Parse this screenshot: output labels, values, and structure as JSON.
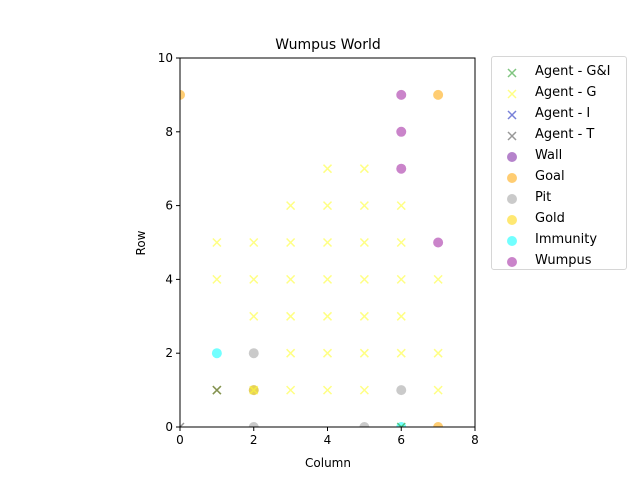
{
  "chart_data": {
    "type": "scatter",
    "title": "Wumpus World",
    "xlabel": "Column",
    "ylabel": "Row",
    "xlim": [
      0,
      8
    ],
    "ylim": [
      0,
      10
    ],
    "xticks": [
      "0",
      "2",
      "4",
      "6",
      "8"
    ],
    "yticks": [
      "0",
      "2",
      "4",
      "6",
      "8",
      "10"
    ],
    "grid": false,
    "legend_placement": "outside-right",
    "series": [
      {
        "name": "Agent - G&I",
        "marker": "x",
        "color": "#2ca02c",
        "points": [
          [
            1,
            1
          ],
          [
            6,
            0
          ]
        ]
      },
      {
        "name": "Agent - G",
        "marker": "x",
        "color": "#ffff33",
        "points": [
          [
            1,
            1
          ],
          [
            1,
            4
          ],
          [
            1,
            5
          ],
          [
            2,
            1
          ],
          [
            2,
            3
          ],
          [
            2,
            4
          ],
          [
            2,
            5
          ],
          [
            3,
            1
          ],
          [
            3,
            2
          ],
          [
            3,
            3
          ],
          [
            3,
            4
          ],
          [
            3,
            5
          ],
          [
            3,
            6
          ],
          [
            4,
            1
          ],
          [
            4,
            2
          ],
          [
            4,
            3
          ],
          [
            4,
            4
          ],
          [
            4,
            5
          ],
          [
            4,
            6
          ],
          [
            4,
            7
          ],
          [
            5,
            1
          ],
          [
            5,
            2
          ],
          [
            5,
            3
          ],
          [
            5,
            4
          ],
          [
            5,
            5
          ],
          [
            5,
            6
          ],
          [
            5,
            7
          ],
          [
            6,
            2
          ],
          [
            6,
            3
          ],
          [
            6,
            4
          ],
          [
            6,
            5
          ],
          [
            6,
            6
          ],
          [
            7,
            1
          ],
          [
            7,
            2
          ],
          [
            7,
            4
          ]
        ]
      },
      {
        "name": "Agent - I",
        "marker": "x",
        "color": "#1f2fbf",
        "points": []
      },
      {
        "name": "Agent - T",
        "marker": "x",
        "color": "#555555",
        "points": [
          [
            0,
            0
          ],
          [
            1,
            1
          ]
        ]
      },
      {
        "name": "Wall",
        "marker": "o",
        "color": "#7a1fa2",
        "points": []
      },
      {
        "name": "Goal",
        "marker": "o",
        "color": "#ffa500",
        "points": [
          [
            0,
            9
          ],
          [
            7,
            9
          ],
          [
            7,
            0
          ]
        ]
      },
      {
        "name": "Pit",
        "marker": "o",
        "color": "#a0a0a0",
        "points": [
          [
            2,
            2
          ],
          [
            2,
            1
          ],
          [
            2,
            0
          ],
          [
            5,
            0
          ],
          [
            6,
            1
          ]
        ]
      },
      {
        "name": "Gold",
        "marker": "o",
        "color": "#ffd700",
        "points": [
          [
            2,
            1
          ]
        ]
      },
      {
        "name": "Immunity",
        "marker": "o",
        "color": "#00ffff",
        "points": [
          [
            1,
            2
          ],
          [
            6,
            0
          ]
        ]
      },
      {
        "name": "Wumpus",
        "marker": "o",
        "color": "#a020a0",
        "points": [
          [
            6,
            9
          ],
          [
            6,
            8
          ],
          [
            6,
            7
          ],
          [
            7,
            5
          ]
        ]
      }
    ]
  }
}
